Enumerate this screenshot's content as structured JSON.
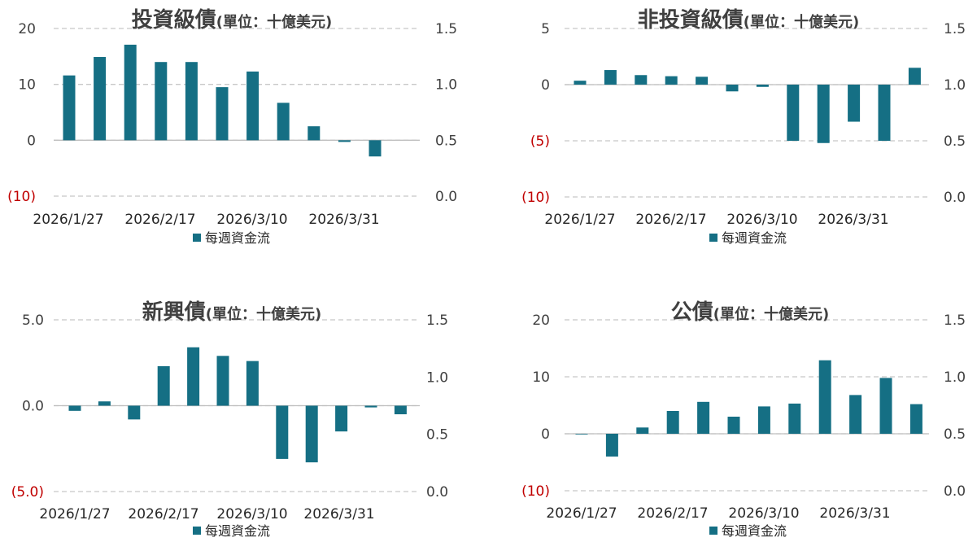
{
  "colors": {
    "bar": "#156f84",
    "grid": "#c8c8c8",
    "negative_label": "#c00000"
  },
  "chart_data": [
    {
      "type": "bar",
      "title": "投資級債",
      "subtitle": "(單位：十億美元)",
      "x_ticks": [
        "2026/1/27",
        "2026/2/17",
        "2026/3/10",
        "2026/3/31"
      ],
      "series": [
        {
          "name": "每週資金流",
          "values": [
            11.6,
            14.9,
            17.1,
            14.0,
            14.0,
            9.5,
            12.3,
            6.7,
            2.5,
            -0.3,
            -2.9
          ]
        }
      ],
      "ylim": [
        -10,
        20
      ],
      "y_ticks": [
        "20",
        "10",
        "0",
        "(10)"
      ],
      "y2lim": [
        0.0,
        1.5
      ],
      "y2_ticks": [
        "1.5",
        "1.0",
        "0.5",
        "0.0"
      ],
      "grid": true,
      "legend": "bottom"
    },
    {
      "type": "bar",
      "title": "非投資級債",
      "subtitle": "(單位：十億美元)",
      "x_ticks": [
        "2026/1/27",
        "2026/2/17",
        "2026/3/10",
        "2026/3/31"
      ],
      "series": [
        {
          "name": "每週資金流",
          "values": [
            0.35,
            1.3,
            0.85,
            0.75,
            0.7,
            -0.6,
            -0.2,
            -5.0,
            -5.2,
            -3.3,
            -5.0,
            1.5
          ]
        }
      ],
      "ylim": [
        -10,
        5
      ],
      "y_ticks": [
        "5",
        "0",
        "(5)",
        "(10)"
      ],
      "y2lim": [
        0.0,
        1.5
      ],
      "y2_ticks": [
        "1.5",
        "1.0",
        "0.5",
        "0.0"
      ],
      "grid": true,
      "legend": "bottom"
    },
    {
      "type": "bar",
      "title": "新興債",
      "subtitle": "(單位：十億美元)",
      "x_ticks": [
        "2026/1/27",
        "2026/2/17",
        "2026/3/10",
        "2026/3/31"
      ],
      "series": [
        {
          "name": "每週資金流",
          "values": [
            -0.3,
            0.25,
            -0.8,
            2.3,
            3.4,
            2.9,
            2.6,
            -3.1,
            -3.3,
            -1.5,
            -0.1,
            -0.5
          ]
        }
      ],
      "ylim": [
        -5,
        5
      ],
      "y_ticks": [
        "5.0",
        "0.0",
        "(5.0)"
      ],
      "y2lim": [
        0.0,
        1.5
      ],
      "y2_ticks": [
        "1.5",
        "1.0",
        "0.5",
        "0.0"
      ],
      "grid": true,
      "legend": "bottom"
    },
    {
      "type": "bar",
      "title": "公債",
      "subtitle": "(單位：十億美元)",
      "x_ticks": [
        "2026/1/27",
        "2026/2/17",
        "2026/3/10",
        "2026/3/31"
      ],
      "series": [
        {
          "name": "每週資金流",
          "values": [
            0.0,
            -4.0,
            1.1,
            4.0,
            5.6,
            3.0,
            4.8,
            5.3,
            12.9,
            6.8,
            9.8,
            5.2
          ]
        }
      ],
      "ylim": [
        -10,
        20
      ],
      "y_ticks": [
        "20",
        "10",
        "0",
        "(10)"
      ],
      "y2lim": [
        0.0,
        1.5
      ],
      "y2_ticks": [
        "1.5",
        "1.0",
        "0.5",
        "0.0"
      ],
      "grid": true,
      "legend": "bottom"
    }
  ]
}
